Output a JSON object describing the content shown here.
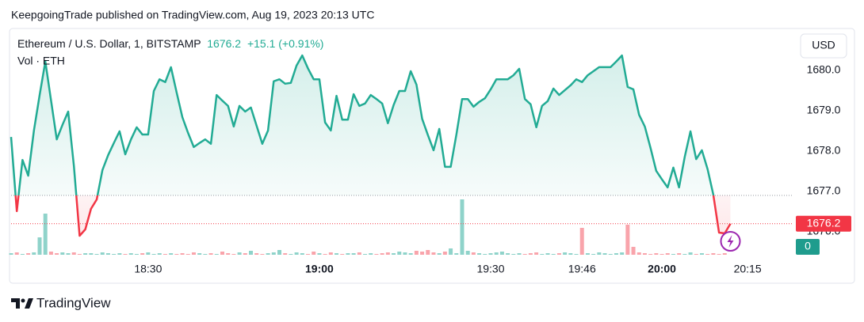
{
  "chart_data": {
    "type": "line",
    "source": "KeepgoingTrade published on TradingView.com, Aug 19, 2023 20:13 UTC",
    "change": "+15.1 (+0.91%)",
    "currency": "USD",
    "footer": "TradingView",
    "baseline": 1676.9,
    "up_color": "#22ab94",
    "down_color": "#f23645",
    "x": [
      1086,
      1087,
      1088,
      1089,
      1090,
      1091,
      1092,
      1093,
      1094,
      1095,
      1096,
      1097,
      1098,
      1099,
      1100,
      1101,
      1102,
      1103,
      1104,
      1105,
      1106,
      1107,
      1108,
      1109,
      1110,
      1111,
      1112,
      1113,
      1114,
      1115,
      1116,
      1117,
      1118,
      1119,
      1120,
      1121,
      1122,
      1123,
      1124,
      1125,
      1126,
      1127,
      1128,
      1129,
      1130,
      1131,
      1132,
      1133,
      1134,
      1135,
      1136,
      1137,
      1138,
      1139,
      1140,
      1141,
      1142,
      1143,
      1144,
      1145,
      1146,
      1147,
      1148,
      1149,
      1150,
      1151,
      1152,
      1153,
      1154,
      1155,
      1156,
      1157,
      1158,
      1159,
      1160,
      1161,
      1162,
      1163,
      1164,
      1165,
      1166,
      1167,
      1168,
      1169,
      1170,
      1171,
      1172,
      1173,
      1174,
      1175,
      1176,
      1177,
      1178,
      1179,
      1180,
      1181,
      1182,
      1183,
      1184,
      1185,
      1186,
      1187,
      1188,
      1189,
      1190,
      1191,
      1192,
      1193,
      1194,
      1195,
      1196,
      1197,
      1198,
      1199,
      1200,
      1201,
      1202,
      1203,
      1204,
      1205,
      1206,
      1207,
      1208,
      1209,
      1210,
      1211,
      1212
    ],
    "series": [
      {
        "name": "Ethereum / U.S. Dollar, 1, BITSTAMP",
        "color": "#22ab94",
        "values": [
          1678.35,
          1676.51,
          1677.78,
          1677.39,
          1678.51,
          1679.39,
          1680.22,
          1679.25,
          1678.29,
          1678.65,
          1678.98,
          1677.63,
          1675.9,
          1676.06,
          1676.57,
          1676.8,
          1677.53,
          1677.9,
          1678.2,
          1678.49,
          1677.92,
          1678.29,
          1678.59,
          1678.41,
          1678.41,
          1679.49,
          1679.78,
          1679.71,
          1680.08,
          1679.45,
          1678.84,
          1678.45,
          1678.1,
          1678.2,
          1678.29,
          1678.18,
          1679.39,
          1679.25,
          1679.12,
          1678.61,
          1679.12,
          1678.98,
          1679.08,
          1678.63,
          1678.18,
          1678.51,
          1679.73,
          1679.78,
          1679.67,
          1679.69,
          1680.12,
          1680.37,
          1680.05,
          1679.78,
          1679.78,
          1678.71,
          1678.51,
          1679.37,
          1678.78,
          1678.78,
          1679.41,
          1679.12,
          1679.18,
          1679.39,
          1679.29,
          1679.18,
          1678.69,
          1679.14,
          1679.49,
          1679.49,
          1679.98,
          1679.65,
          1678.8,
          1678.4,
          1678.02,
          1678.55,
          1677.61,
          1677.61,
          1678.41,
          1679.29,
          1679.29,
          1679.1,
          1679.22,
          1679.31,
          1679.53,
          1679.78,
          1679.78,
          1679.78,
          1679.88,
          1680.04,
          1679.29,
          1679.16,
          1678.59,
          1679.12,
          1679.24,
          1679.55,
          1679.39,
          1679.51,
          1679.63,
          1679.78,
          1679.71,
          1679.88,
          1679.98,
          1680.08,
          1680.08,
          1680.08,
          1680.22,
          1680.37,
          1679.59,
          1679.53,
          1678.9,
          1678.61,
          1678.08,
          1677.51,
          1677.3,
          1677.1,
          1677.59,
          1677.1,
          1677.86,
          1678.49,
          1677.8,
          1678.02,
          1677.55,
          1676.92,
          1675.98,
          1675.96,
          1676.2
        ]
      },
      {
        "name": "Vol · ETH",
        "axis": "y2",
        "color": "#8fd3ca",
        "values": [
          2,
          3,
          1,
          2,
          3,
          22,
          52,
          4,
          2,
          3,
          2,
          3,
          1,
          2,
          2,
          1,
          3,
          2,
          1,
          2,
          1,
          2,
          1,
          2,
          3,
          1,
          2,
          1,
          2,
          1,
          2,
          1,
          3,
          2,
          1,
          2,
          1,
          4,
          2,
          1,
          3,
          2,
          5,
          2,
          1,
          2,
          3,
          6,
          2,
          1,
          3,
          2,
          1,
          4,
          2,
          1,
          3,
          2,
          1,
          2,
          2,
          3,
          1,
          2,
          1,
          2,
          3,
          2,
          4,
          3,
          2,
          5,
          4,
          6,
          3,
          2,
          4,
          8,
          2,
          70,
          5,
          3,
          2,
          1,
          2,
          3,
          4,
          2,
          1,
          2,
          1,
          2,
          3,
          1,
          2,
          1,
          2,
          3,
          2,
          1,
          34,
          2,
          1,
          3,
          2,
          1,
          2,
          3,
          38,
          10,
          3,
          2,
          1,
          2,
          1,
          2,
          1,
          2,
          1,
          3,
          1,
          2,
          1,
          2,
          1,
          2,
          0
        ]
      }
    ],
    "xlim": [
      1086,
      1222.9
    ],
    "xticks": [
      {
        "value": 1110,
        "label": "18:30"
      },
      {
        "value": 1140,
        "label": "19:00"
      },
      {
        "value": 1170,
        "label": "19:30"
      },
      {
        "value": 1186,
        "label": "19:46"
      },
      {
        "value": 1200,
        "label": "20:00"
      },
      {
        "value": 1215,
        "label": "20:15"
      }
    ],
    "ylim": [
      1675.43,
      1681
    ],
    "yticks": [
      {
        "value": 1676,
        "label": "1676.0"
      },
      {
        "value": 1677,
        "label": "1677.0"
      },
      {
        "value": 1678,
        "label": "1678.0"
      },
      {
        "value": 1679,
        "label": "1679.0"
      },
      {
        "value": 1680,
        "label": "1680.0"
      }
    ],
    "y2lim": [
      0,
      284
    ]
  }
}
